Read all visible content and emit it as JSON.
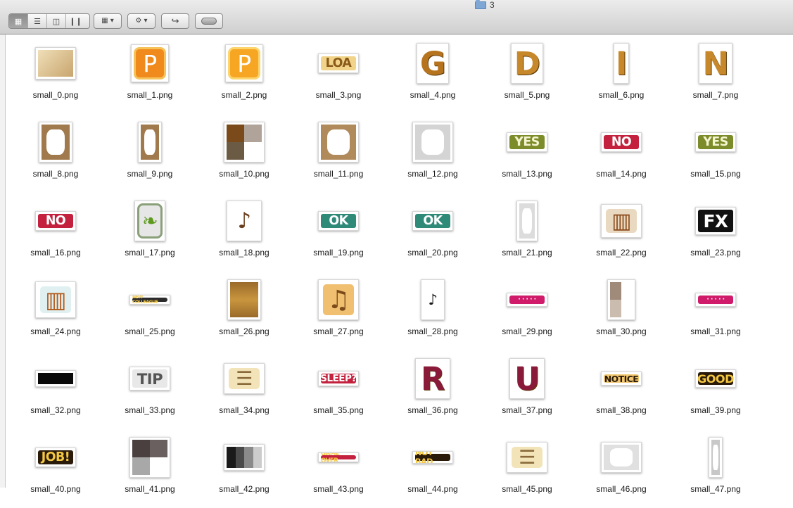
{
  "window": {
    "title": "3",
    "folder_icon": "folder-icon"
  },
  "toolbar": {
    "view_buttons": [
      {
        "name": "icon-view",
        "glyph": "▦",
        "active": true
      },
      {
        "name": "list-view",
        "glyph": "☰",
        "active": false
      },
      {
        "name": "column-view",
        "glyph": "◫",
        "active": false
      },
      {
        "name": "coverflow-view",
        "glyph": "❙❙",
        "active": false
      }
    ],
    "arrange_glyph": "▦ ▾",
    "action_glyph": "⚙ ▾",
    "share_glyph": "↪"
  },
  "files": [
    {
      "name": "small_0.png",
      "art": {
        "kind": "block",
        "w": 58,
        "h": 46,
        "c": [
          "#f0dfb8",
          "#c8a56e"
        ]
      }
    },
    {
      "name": "small_1.png",
      "art": {
        "kind": "glyph",
        "w": 54,
        "h": 54,
        "t": "Ρ",
        "fg": "#ffffff",
        "bg": "#f08a1c",
        "ring": "#f6c35a"
      }
    },
    {
      "name": "small_2.png",
      "art": {
        "kind": "glyph",
        "w": 54,
        "h": 54,
        "t": "Ρ",
        "fg": "#ffffff",
        "bg": "#f6a623",
        "ring": "#fcd56e"
      }
    },
    {
      "name": "small_3.png",
      "art": {
        "kind": "word",
        "w": 58,
        "h": 28,
        "t": "LOA",
        "fg": "#8a5a1a",
        "bg": "#f1d48a"
      }
    },
    {
      "name": "small_4.png",
      "art": {
        "kind": "letter",
        "w": 46,
        "h": 58,
        "t": "G",
        "fg": "#b7741f",
        "bg": "#fff"
      }
    },
    {
      "name": "small_5.png",
      "art": {
        "kind": "letter",
        "w": 46,
        "h": 58,
        "t": "D",
        "fg": "#c6882a",
        "bg": "#fff"
      }
    },
    {
      "name": "small_6.png",
      "art": {
        "kind": "letter",
        "w": 22,
        "h": 58,
        "t": "I",
        "fg": "#c6882a",
        "bg": "#fff"
      }
    },
    {
      "name": "small_7.png",
      "art": {
        "kind": "letter",
        "w": 48,
        "h": 58,
        "t": "N",
        "fg": "#c6882a",
        "bg": "#fff"
      }
    },
    {
      "name": "small_8.png",
      "art": {
        "kind": "pixel",
        "w": 48,
        "h": 58,
        "c": [
          "#a07a4c",
          "#fff"
        ]
      }
    },
    {
      "name": "small_9.png",
      "art": {
        "kind": "pixel",
        "w": 34,
        "h": 58,
        "c": [
          "#a07a4c",
          "#fff"
        ]
      }
    },
    {
      "name": "small_10.png",
      "art": {
        "kind": "quad",
        "w": 58,
        "h": 58,
        "c": [
          "#7a4a1a",
          "#b0a49a",
          "#6b5a44",
          "#ffffff"
        ]
      }
    },
    {
      "name": "small_11.png",
      "art": {
        "kind": "pixel",
        "w": 58,
        "h": 58,
        "c": [
          "#b08a5a",
          "#fff"
        ]
      }
    },
    {
      "name": "small_12.png",
      "art": {
        "kind": "pixel",
        "w": 58,
        "h": 58,
        "c": [
          "#d4d4d4",
          "#fff"
        ]
      }
    },
    {
      "name": "small_13.png",
      "art": {
        "kind": "word",
        "w": 58,
        "h": 28,
        "t": "YES",
        "fg": "#f4f4d0",
        "bg": "#7d8c2a"
      }
    },
    {
      "name": "small_14.png",
      "art": {
        "kind": "word",
        "w": 58,
        "h": 28,
        "t": "NO",
        "fg": "#ffffff",
        "bg": "#c3213d"
      }
    },
    {
      "name": "small_15.png",
      "art": {
        "kind": "word",
        "w": 58,
        "h": 28,
        "t": "YES",
        "fg": "#f4f4d0",
        "bg": "#7d8c2a"
      }
    },
    {
      "name": "small_16.png",
      "art": {
        "kind": "word",
        "w": 58,
        "h": 28,
        "t": "NO",
        "fg": "#ffffff",
        "bg": "#c3213d"
      }
    },
    {
      "name": "small_17.png",
      "art": {
        "kind": "glyph",
        "w": 44,
        "h": 58,
        "t": "❧",
        "fg": "#5d9a1e",
        "bg": "#e6e6e6",
        "ring": "#8aa07a"
      }
    },
    {
      "name": "small_18.png",
      "art": {
        "kind": "glyph",
        "w": 50,
        "h": 58,
        "t": "♪",
        "fg": "#6b4020",
        "bg": "#ffffff",
        "ring": "#ffffff"
      }
    },
    {
      "name": "small_19.png",
      "art": {
        "kind": "word",
        "w": 58,
        "h": 28,
        "t": "OK",
        "fg": "#ffffff",
        "bg": "#2f8a78"
      }
    },
    {
      "name": "small_20.png",
      "art": {
        "kind": "word",
        "w": 58,
        "h": 28,
        "t": "OK",
        "fg": "#ffffff",
        "bg": "#2f8a78"
      }
    },
    {
      "name": "small_21.png",
      "art": {
        "kind": "pixel",
        "w": 30,
        "h": 58,
        "c": [
          "#dcdcdc",
          "#fff"
        ]
      }
    },
    {
      "name": "small_22.png",
      "art": {
        "kind": "glyph",
        "w": 58,
        "h": 48,
        "t": "▥",
        "fg": "#8a4a1a",
        "bg": "#e9d9c0",
        "ring": "#ffffff"
      }
    },
    {
      "name": "small_23.png",
      "art": {
        "kind": "word",
        "w": 58,
        "h": 40,
        "t": "FX",
        "fg": "#ffffff",
        "bg": "#111111"
      }
    },
    {
      "name": "small_24.png",
      "art": {
        "kind": "glyph",
        "w": 58,
        "h": 52,
        "t": "▥",
        "fg": "#b35a1a",
        "bg": "#e0f0f0",
        "ring": "#ffffff"
      }
    },
    {
      "name": "small_25.png",
      "art": {
        "kind": "word",
        "w": 58,
        "h": 14,
        "t": "NEW COLLEAGUE",
        "fg": "#f4c842",
        "bg": "#2a2a2a"
      }
    },
    {
      "name": "small_26.png",
      "art": {
        "kind": "stripes",
        "w": 48,
        "h": 58,
        "c": [
          "#9a6a2a",
          "#c9963e",
          "#9a6a2a"
        ]
      }
    },
    {
      "name": "small_27.png",
      "art": {
        "kind": "glyph",
        "w": 58,
        "h": 58,
        "t": "♫",
        "fg": "#7a4a1a",
        "bg": "#f0c070",
        "ring": "#ffffff"
      }
    },
    {
      "name": "small_28.png",
      "art": {
        "kind": "glyph",
        "w": 34,
        "h": 58,
        "t": "♪",
        "fg": "#1a1a1a",
        "bg": "#ffffff",
        "ring": "#ffffff"
      }
    },
    {
      "name": "small_29.png",
      "art": {
        "kind": "word",
        "w": 58,
        "h": 20,
        "t": "· · · · ·",
        "fg": "#ffffff",
        "bg": "#d01b6a"
      }
    },
    {
      "name": "small_30.png",
      "art": {
        "kind": "quad",
        "w": 40,
        "h": 58,
        "c": [
          "#a08a7a",
          "#ffffff",
          "#cbbcb0",
          "#ffffff"
        ]
      }
    },
    {
      "name": "small_31.png",
      "art": {
        "kind": "word",
        "w": 58,
        "h": 20,
        "t": "· · · · ·",
        "fg": "#ffffff",
        "bg": "#d01b6a"
      }
    },
    {
      "name": "small_32.png",
      "art": {
        "kind": "block",
        "w": 58,
        "h": 24,
        "c": [
          "#0a0a0a",
          "#0a0a0a"
        ]
      }
    },
    {
      "name": "small_33.png",
      "art": {
        "kind": "word",
        "w": 58,
        "h": 34,
        "t": "TIP",
        "fg": "#555555",
        "bg": "#e8e8e8"
      }
    },
    {
      "name": "small_34.png",
      "art": {
        "kind": "glyph",
        "w": 58,
        "h": 44,
        "t": "☰",
        "fg": "#8a6a3a",
        "bg": "#f2e3b8",
        "ring": "#ffffff"
      }
    },
    {
      "name": "small_35.png",
      "art": {
        "kind": "word",
        "w": 58,
        "h": 22,
        "t": "SLEEP?",
        "fg": "#ffffff",
        "bg": "#c3213d"
      }
    },
    {
      "name": "small_36.png",
      "art": {
        "kind": "letter",
        "w": 50,
        "h": 58,
        "t": "R",
        "fg": "#8a1a3a",
        "bg": "#fff"
      }
    },
    {
      "name": "small_37.png",
      "art": {
        "kind": "letter",
        "w": 50,
        "h": 58,
        "t": "U",
        "fg": "#8a1a3a",
        "bg": "#fff"
      }
    },
    {
      "name": "small_38.png",
      "art": {
        "kind": "word",
        "w": 58,
        "h": 20,
        "t": "NOTICE",
        "fg": "#2a1a0a",
        "bg": "#f2c870"
      }
    },
    {
      "name": "small_39.png",
      "art": {
        "kind": "word",
        "w": 58,
        "h": 26,
        "t": "GOOD",
        "fg": "#f4c842",
        "bg": "#2a1a0a"
      }
    },
    {
      "name": "small_40.png",
      "art": {
        "kind": "word",
        "w": 58,
        "h": 28,
        "t": "JOB!",
        "fg": "#f4c842",
        "bg": "#2a1a0a"
      }
    },
    {
      "name": "small_41.png",
      "art": {
        "kind": "quad",
        "w": 58,
        "h": 58,
        "c": [
          "#4a4040",
          "#6a6060",
          "#a8a8a8",
          "#ffffff"
        ]
      }
    },
    {
      "name": "small_42.png",
      "art": {
        "kind": "bars",
        "w": 58,
        "h": 38,
        "c": [
          "#1a1a1a",
          "#4a4a4a",
          "#8a8a8a",
          "#cccccc"
        ]
      }
    },
    {
      "name": "small_43.png",
      "art": {
        "kind": "word",
        "w": 58,
        "h": 14,
        "t": "GAME OVER",
        "fg": "#f4c842",
        "bg": "#c3213d"
      }
    },
    {
      "name": "small_44.png",
      "art": {
        "kind": "word",
        "w": 58,
        "h": 18,
        "t": "NOT BAD",
        "fg": "#f4c842",
        "bg": "#2a1a0a"
      }
    },
    {
      "name": "small_45.png",
      "art": {
        "kind": "glyph",
        "w": 58,
        "h": 44,
        "t": "☰",
        "fg": "#8a6a3a",
        "bg": "#f2e3b8",
        "ring": "#ffffff"
      }
    },
    {
      "name": "small_46.png",
      "art": {
        "kind": "pixel",
        "w": 58,
        "h": 44,
        "c": [
          "#e0e0e0",
          "#fff"
        ]
      }
    },
    {
      "name": "small_47.png",
      "art": {
        "kind": "pixel",
        "w": 20,
        "h": 58,
        "c": [
          "#c8c8c8",
          "#fff"
        ]
      }
    }
  ]
}
